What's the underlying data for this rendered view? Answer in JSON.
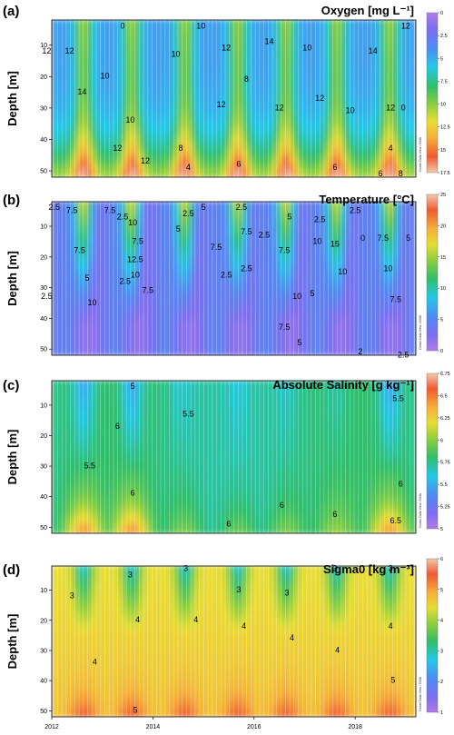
{
  "chart_data": [
    {
      "type": "heatmap",
      "panel_label": "(a)",
      "title": "Oxygen [mg L⁻¹]",
      "ylabel": "Depth [m]",
      "y_ticks": [
        10,
        20,
        30,
        40,
        50
      ],
      "ylim": [
        52,
        2
      ],
      "xlim": [
        2012,
        2019.2
      ],
      "x_ticks": [],
      "colorbar": {
        "min": 0,
        "max": 17.5,
        "ticks": [
          0,
          2.5,
          5,
          7.5,
          10,
          12.5,
          15,
          17.5
        ],
        "reversed": true
      },
      "contour_labels": [
        {
          "t": 2011.9,
          "d": 12,
          "v": "12"
        },
        {
          "t": 2012.35,
          "d": 12,
          "v": "12"
        },
        {
          "t": 2012.6,
          "d": 25,
          "v": "14"
        },
        {
          "t": 2013.05,
          "d": 20,
          "v": "10"
        },
        {
          "t": 2013.4,
          "d": 4,
          "v": "0"
        },
        {
          "t": 2013.55,
          "d": 34,
          "v": "10"
        },
        {
          "t": 2013.3,
          "d": 43,
          "v": "12"
        },
        {
          "t": 2013.85,
          "d": 47,
          "v": "12"
        },
        {
          "t": 2014.45,
          "d": 13,
          "v": "10"
        },
        {
          "t": 2014.55,
          "d": 43,
          "v": "8"
        },
        {
          "t": 2014.7,
          "d": 49,
          "v": "4"
        },
        {
          "t": 2014.95,
          "d": 4,
          "v": "10"
        },
        {
          "t": 2015.45,
          "d": 11,
          "v": "12"
        },
        {
          "t": 2015.35,
          "d": 29,
          "v": "12"
        },
        {
          "t": 2015.85,
          "d": 21,
          "v": "8"
        },
        {
          "t": 2015.7,
          "d": 48,
          "v": "6"
        },
        {
          "t": 2016.3,
          "d": 9,
          "v": "14"
        },
        {
          "t": 2016.5,
          "d": 30,
          "v": "12"
        },
        {
          "t": 2017.05,
          "d": 11,
          "v": "10"
        },
        {
          "t": 2017.3,
          "d": 27,
          "v": "12"
        },
        {
          "t": 2017.6,
          "d": 49,
          "v": "6"
        },
        {
          "t": 2017.9,
          "d": 31,
          "v": "10"
        },
        {
          "t": 2018.35,
          "d": 12,
          "v": "14"
        },
        {
          "t": 2018.7,
          "d": 30,
          "v": "12"
        },
        {
          "t": 2018.7,
          "d": 43,
          "v": "4"
        },
        {
          "t": 2018.5,
          "d": 51,
          "v": "6"
        },
        {
          "t": 2018.9,
          "d": 51,
          "v": "8"
        },
        {
          "t": 2019.0,
          "d": 4,
          "v": "12"
        },
        {
          "t": 2018.95,
          "d": 30,
          "v": "0"
        }
      ],
      "watermark": "Ocean Data View / DIVA"
    },
    {
      "type": "heatmap",
      "panel_label": "(b)",
      "title": "Temperature [°C]",
      "ylabel": "Depth [m]",
      "y_ticks": [
        10,
        20,
        30,
        40,
        50
      ],
      "ylim": [
        52,
        2
      ],
      "xlim": [
        2012,
        2019.2
      ],
      "x_ticks": [],
      "colorbar": {
        "min": 0,
        "max": 25,
        "ticks": [
          0,
          5,
          10,
          15,
          20,
          25
        ],
        "reversed": false
      },
      "contour_labels": [
        {
          "t": 2012.05,
          "d": 4,
          "v": "2.5"
        },
        {
          "t": 2012.4,
          "d": 5,
          "v": "7.5"
        },
        {
          "t": 2012.55,
          "d": 18,
          "v": "7.5"
        },
        {
          "t": 2012.7,
          "d": 27,
          "v": "5"
        },
        {
          "t": 2011.9,
          "d": 33,
          "v": "2.5"
        },
        {
          "t": 2012.8,
          "d": 35,
          "v": "10"
        },
        {
          "t": 2013.15,
          "d": 5,
          "v": "7.5"
        },
        {
          "t": 2013.4,
          "d": 7,
          "v": "2.5"
        },
        {
          "t": 2013.6,
          "d": 9,
          "v": "10"
        },
        {
          "t": 2013.7,
          "d": 15,
          "v": "7.5"
        },
        {
          "t": 2013.65,
          "d": 21,
          "v": "12.5"
        },
        {
          "t": 2013.65,
          "d": 26,
          "v": "10"
        },
        {
          "t": 2013.45,
          "d": 28,
          "v": "2.5"
        },
        {
          "t": 2013.9,
          "d": 31,
          "v": "7.5"
        },
        {
          "t": 2014.7,
          "d": 6,
          "v": "2.5"
        },
        {
          "t": 2014.5,
          "d": 11,
          "v": "5"
        },
        {
          "t": 2015.0,
          "d": 4,
          "v": "5"
        },
        {
          "t": 2015.25,
          "d": 17,
          "v": "7.5"
        },
        {
          "t": 2015.45,
          "d": 26,
          "v": "2.5"
        },
        {
          "t": 2015.75,
          "d": 4,
          "v": "2.5"
        },
        {
          "t": 2015.85,
          "d": 12,
          "v": "7.5"
        },
        {
          "t": 2015.85,
          "d": 24,
          "v": "2.5"
        },
        {
          "t": 2016.2,
          "d": 13,
          "v": "2.5"
        },
        {
          "t": 2016.7,
          "d": 7,
          "v": "5"
        },
        {
          "t": 2016.6,
          "d": 18,
          "v": "7.5"
        },
        {
          "t": 2016.85,
          "d": 33,
          "v": "10"
        },
        {
          "t": 2016.6,
          "d": 43,
          "v": "7.5"
        },
        {
          "t": 2016.9,
          "d": 48,
          "v": "5"
        },
        {
          "t": 2017.3,
          "d": 8,
          "v": "2.5"
        },
        {
          "t": 2017.25,
          "d": 15,
          "v": "10"
        },
        {
          "t": 2017.6,
          "d": 16,
          "v": "15"
        },
        {
          "t": 2017.75,
          "d": 25,
          "v": "10"
        },
        {
          "t": 2017.15,
          "d": 32,
          "v": "5"
        },
        {
          "t": 2018.0,
          "d": 5,
          "v": "2.5"
        },
        {
          "t": 2018.15,
          "d": 14,
          "v": "0"
        },
        {
          "t": 2018.55,
          "d": 14,
          "v": "7.5"
        },
        {
          "t": 2018.65,
          "d": 24,
          "v": "10"
        },
        {
          "t": 2018.8,
          "d": 34,
          "v": "7.5"
        },
        {
          "t": 2018.1,
          "d": 51,
          "v": "2"
        },
        {
          "t": 2019.05,
          "d": 14,
          "v": "5"
        },
        {
          "t": 2018.95,
          "d": 52,
          "v": "2.5"
        }
      ],
      "watermark": "Ocean Data View / DIVA"
    },
    {
      "type": "heatmap",
      "panel_label": "(c)",
      "title": "Absolute Salinity [g kg⁻¹]",
      "ylabel": "Depth [m]",
      "y_ticks": [
        10,
        20,
        30,
        40,
        50
      ],
      "ylim": [
        52,
        2
      ],
      "xlim": [
        2012,
        2019.2
      ],
      "x_ticks": [],
      "colorbar": {
        "min": 5,
        "max": 6.75,
        "ticks": [
          5,
          5.25,
          5.5,
          5.75,
          6,
          6.25,
          6.5,
          6.75
        ],
        "reversed": false
      },
      "contour_labels": [
        {
          "t": 2012.75,
          "d": 30,
          "v": "5.5"
        },
        {
          "t": 2013.3,
          "d": 17,
          "v": "6"
        },
        {
          "t": 2013.6,
          "d": 4,
          "v": "5"
        },
        {
          "t": 2013.6,
          "d": 39,
          "v": "6"
        },
        {
          "t": 2014.7,
          "d": 13,
          "v": "5.5"
        },
        {
          "t": 2015.5,
          "d": 49,
          "v": "6"
        },
        {
          "t": 2016.55,
          "d": 43,
          "v": "6"
        },
        {
          "t": 2017.6,
          "d": 46,
          "v": "6"
        },
        {
          "t": 2018.85,
          "d": 8,
          "v": "5.5"
        },
        {
          "t": 2018.9,
          "d": 36,
          "v": "6"
        },
        {
          "t": 2018.8,
          "d": 48,
          "v": "6.5"
        }
      ],
      "watermark": "Ocean Data View / DIVA"
    },
    {
      "type": "heatmap",
      "panel_label": "(d)",
      "title": "Sigma0 [kg m⁻³]",
      "ylabel": "Depth [m]",
      "y_ticks": [
        10,
        20,
        30,
        40,
        50
      ],
      "ylim": [
        52,
        2
      ],
      "xlim": [
        2012,
        2019.2
      ],
      "x_ticks": [
        2012,
        2014,
        2016,
        2018
      ],
      "colorbar": {
        "min": 1,
        "max": 6,
        "ticks": [
          1,
          2,
          3,
          4,
          5,
          6
        ],
        "reversed": false
      },
      "contour_labels": [
        {
          "t": 2012.4,
          "d": 12,
          "v": "3"
        },
        {
          "t": 2012.85,
          "d": 34,
          "v": "4"
        },
        {
          "t": 2013.55,
          "d": 5,
          "v": "3"
        },
        {
          "t": 2013.7,
          "d": 20,
          "v": "4"
        },
        {
          "t": 2013.65,
          "d": 50,
          "v": "5"
        },
        {
          "t": 2014.65,
          "d": 3,
          "v": "3"
        },
        {
          "t": 2014.85,
          "d": 20,
          "v": "4"
        },
        {
          "t": 2015.7,
          "d": 10,
          "v": "3"
        },
        {
          "t": 2015.8,
          "d": 22,
          "v": "4"
        },
        {
          "t": 2016.65,
          "d": 11,
          "v": "3"
        },
        {
          "t": 2016.75,
          "d": 26,
          "v": "4"
        },
        {
          "t": 2017.6,
          "d": 3,
          "v": "3"
        },
        {
          "t": 2017.65,
          "d": 30,
          "v": "4"
        },
        {
          "t": 2018.7,
          "d": 3,
          "v": "3"
        },
        {
          "t": 2018.7,
          "d": 22,
          "v": "4"
        },
        {
          "t": 2018.75,
          "d": 40,
          "v": "5"
        }
      ],
      "watermark": "Ocean Data View / DIVA"
    }
  ]
}
